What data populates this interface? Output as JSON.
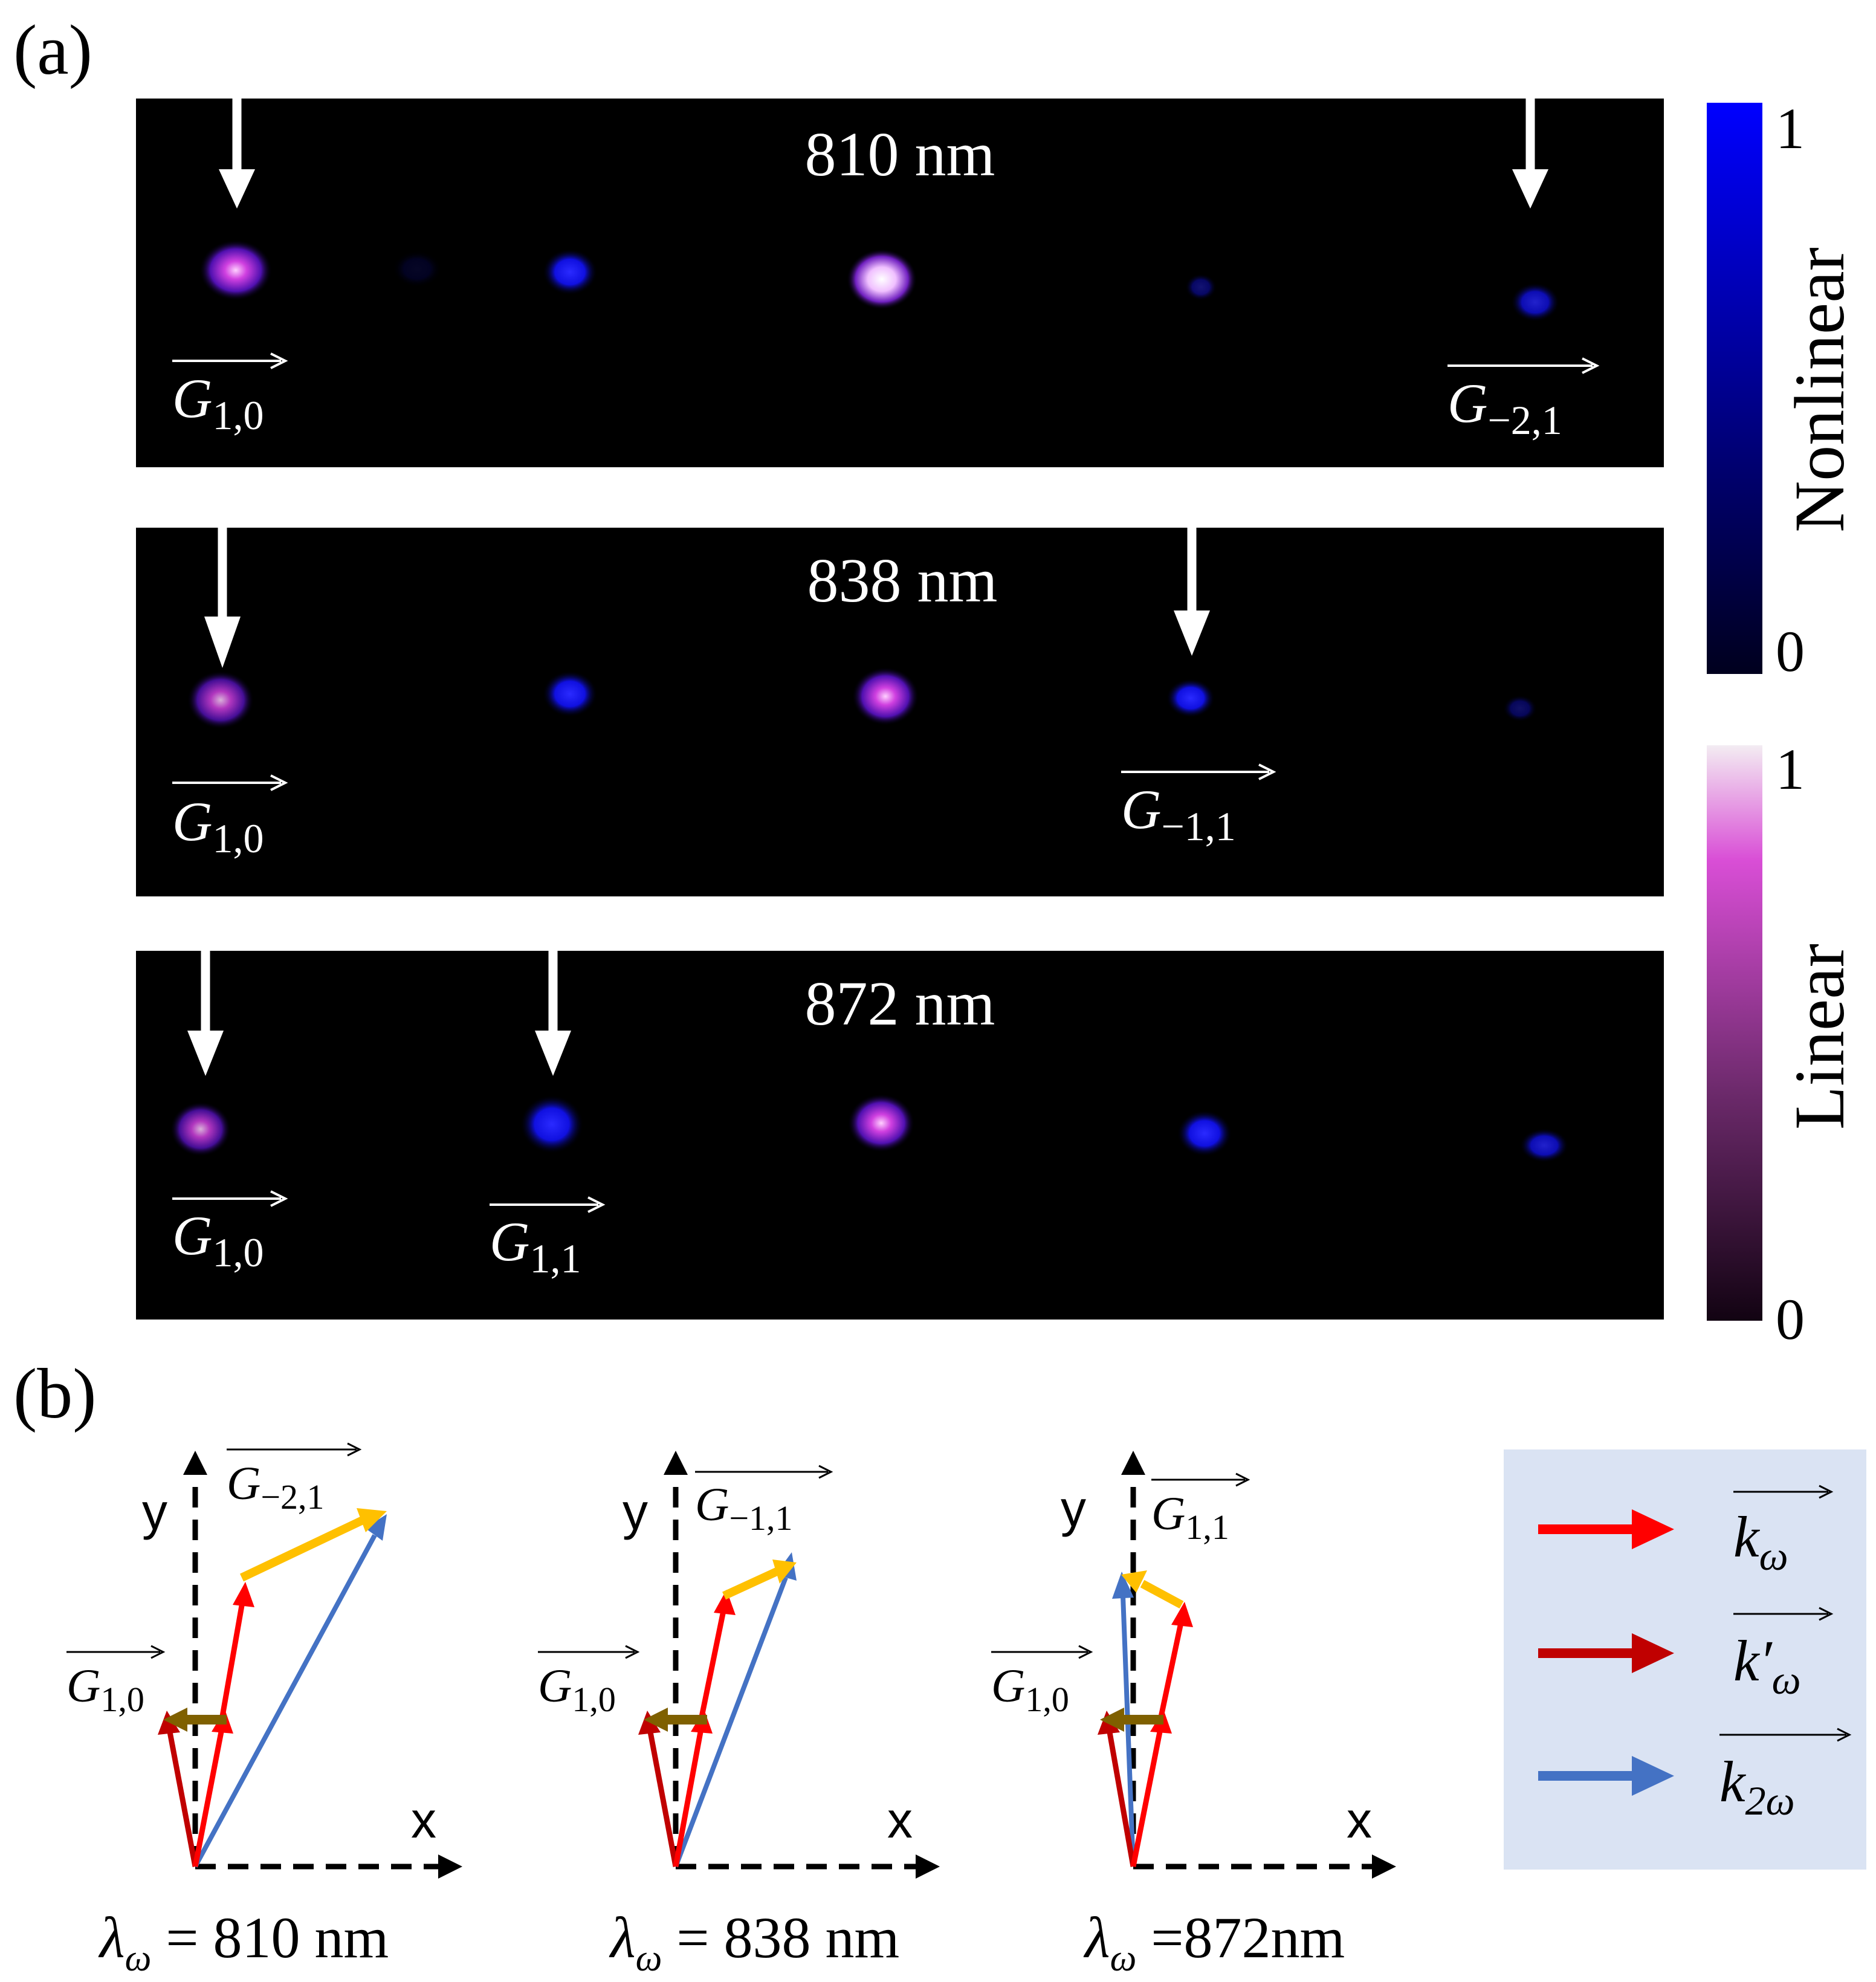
{
  "panel_a": {
    "label": "(a)",
    "rows": [
      {
        "wavelength": "810 nm",
        "spot_intensities": [
          0.8,
          0.08,
          0.55,
          1.0,
          0.2,
          0.4
        ],
        "arrow_labels": [
          {
            "base": "G",
            "sub": "1,0"
          },
          {
            "base": "G",
            "sub": "−2,1"
          }
        ]
      },
      {
        "wavelength": "838 nm",
        "spot_intensities": [
          0.6,
          0.55,
          0.75,
          0.5,
          0.18
        ],
        "arrow_labels": [
          {
            "base": "G",
            "sub": "1,0"
          },
          {
            "base": "G",
            "sub": "−1,1"
          }
        ]
      },
      {
        "wavelength": "872 nm",
        "spot_intensities": [
          0.55,
          0.9,
          0.8,
          0.7,
          0.45
        ],
        "arrow_labels": [
          {
            "base": "G",
            "sub": "1,0"
          },
          {
            "base": "G",
            "sub": "1,1"
          }
        ]
      }
    ],
    "colorbars": [
      {
        "title": "Nonlinear",
        "max": "1",
        "min": "0",
        "colors": [
          "#0000ff",
          "#00001e"
        ]
      },
      {
        "title": "Linear",
        "max": "1",
        "min": "0",
        "colors": [
          "#f3ecf2",
          "#d94ed6",
          "#6d2a6c",
          "#120312"
        ]
      }
    ]
  },
  "panel_b": {
    "label": "(b)",
    "axis_x": "x",
    "axis_y": "y",
    "diagrams": [
      {
        "g_vec": {
          "base": "G",
          "sub": "1,0"
        },
        "g2_vec": {
          "base": "G",
          "sub": "−2,1"
        },
        "lambda_text": " = 810 nm"
      },
      {
        "g_vec": {
          "base": "G",
          "sub": "1,0"
        },
        "g2_vec": {
          "base": "G",
          "sub": "−1,1"
        },
        "lambda_text": " = 838 nm"
      },
      {
        "g_vec": {
          "base": "G",
          "sub": "1,0"
        },
        "g2_vec": {
          "base": "G",
          "sub": "1,1"
        },
        "lambda_text": " =872nm"
      }
    ],
    "lambda_symbol": "λ",
    "lambda_sub": "ω",
    "legend": [
      {
        "base": "k",
        "prime": "",
        "sub": "ω",
        "color": "#ff0000"
      },
      {
        "base": "k",
        "prime": "′",
        "sub": "ω",
        "color": "#c00000"
      },
      {
        "base": "k",
        "prime": "",
        "sub": "2ω",
        "color": "#4472c4"
      }
    ],
    "colors": {
      "k_omega": "#ff0000",
      "k_omega_prime": "#c00000",
      "k_2omega": "#4472c4",
      "g_vector": "#7f6000",
      "g2_vector": "#ffc000",
      "legend_bg": "#dae3f3"
    }
  }
}
